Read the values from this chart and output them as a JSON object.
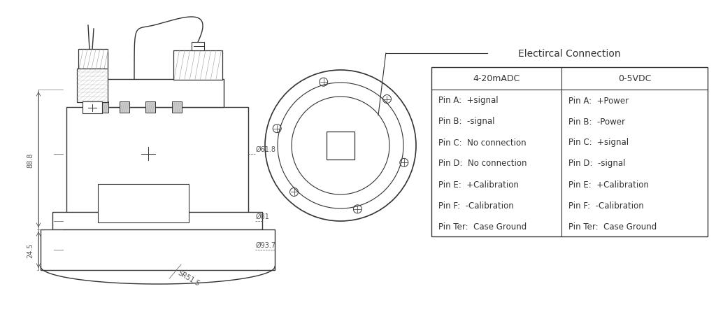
{
  "bg_color": "#ffffff",
  "line_color": "#333333",
  "dim_color": "#555555",
  "table_title": "Electircal Connection",
  "col1_header": "4-20mADC",
  "col2_header": "0-5VDC",
  "col1_rows": [
    "Pin A:  +signal",
    "Pin B:  -signal",
    "Pin C:  No connection",
    "Pin D:  No connection",
    "Pin E:  +Calibration",
    "Pin F:  -Calibration",
    "Pin Ter:  Case Ground"
  ],
  "col2_rows": [
    "Pin A:  +Power",
    "Pin B:  -Power",
    "Pin C:  +signal",
    "Pin D:  -signal",
    "Pin E:  +Calibration",
    "Pin F:  -Calibration",
    "Pin Ter:  Case Ground"
  ],
  "dim_61_8": "Ø61.8",
  "dim_81": "Ø81",
  "dim_93_7": "Ø93.7",
  "dim_88_8": "88.8",
  "dim_24_5": "24.5",
  "dim_sr51_5": "SR51.5"
}
